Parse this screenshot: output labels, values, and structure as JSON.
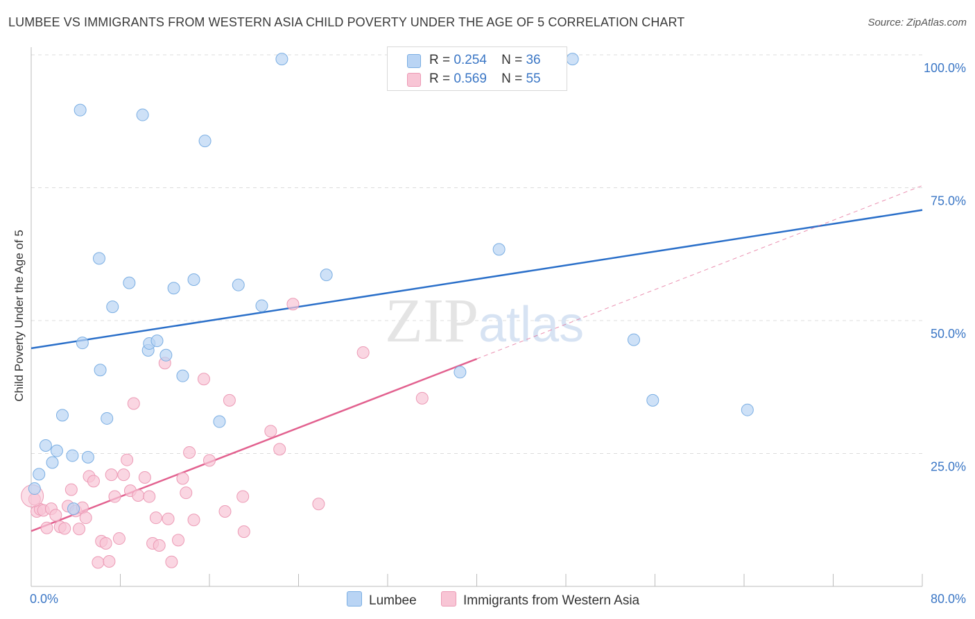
{
  "title": "LUMBEE VS IMMIGRANTS FROM WESTERN ASIA CHILD POVERTY UNDER THE AGE OF 5 CORRELATION CHART",
  "source": "Source: ZipAtlas.com",
  "watermark": "ZIPatlas",
  "colors": {
    "blue_fill": "#b9d4f4",
    "blue_stroke": "#7aaee3",
    "blue_line": "#2a6fc9",
    "pink_fill": "#f8c5d5",
    "pink_stroke": "#ec9ab5",
    "pink_line": "#e2618f",
    "axis_text": "#3a76c5",
    "grid": "#dcdcdc"
  },
  "legend": {
    "r_label": "R =",
    "n_label": "N =",
    "rows": [
      {
        "series": "Lumbee",
        "r": "0.254",
        "n": "36"
      },
      {
        "series": "Immigrants from Western Asia",
        "r": "0.569",
        "n": "55"
      }
    ]
  },
  "chart_data": {
    "type": "scatter",
    "title": "LUMBEE VS IMMIGRANTS FROM WESTERN ASIA CHILD POVERTY UNDER THE AGE OF 5 CORRELATION CHART",
    "xlabel": "",
    "ylabel": "Child Poverty Under the Age of 5",
    "xlim": [
      0,
      80
    ],
    "ylim": [
      0,
      100
    ],
    "x_ticks": [
      "0.0%",
      "80.0%"
    ],
    "y_ticks": [
      "25.0%",
      "50.0%",
      "75.0%",
      "100.0%"
    ],
    "y_tick_values": [
      25,
      50,
      75,
      100
    ],
    "grid": true,
    "legend_position": "top-center",
    "series": [
      {
        "name": "Lumbee",
        "color": "blue",
        "points": [
          [
            0.3,
            18.4
          ],
          [
            0.7,
            21.1
          ],
          [
            1.3,
            26.5
          ],
          [
            1.9,
            23.3
          ],
          [
            2.3,
            25.5
          ],
          [
            2.8,
            32.2
          ],
          [
            3.7,
            24.6
          ],
          [
            3.8,
            14.6
          ],
          [
            5.1,
            24.3
          ],
          [
            4.6,
            45.8
          ],
          [
            4.4,
            89.6
          ],
          [
            6.1,
            61.7
          ],
          [
            6.2,
            40.7
          ],
          [
            6.8,
            31.6
          ],
          [
            7.3,
            52.6
          ],
          [
            8.8,
            57.1
          ],
          [
            10.0,
            88.7
          ],
          [
            10.5,
            44.4
          ],
          [
            10.6,
            45.7
          ],
          [
            11.3,
            46.2
          ],
          [
            12.1,
            43.5
          ],
          [
            12.8,
            56.1
          ],
          [
            13.6,
            39.6
          ],
          [
            14.6,
            57.7
          ],
          [
            15.6,
            83.8
          ],
          [
            16.9,
            31.0
          ],
          [
            18.6,
            56.7
          ],
          [
            20.7,
            52.8
          ],
          [
            22.5,
            99.2
          ],
          [
            26.5,
            58.6
          ],
          [
            38.5,
            40.3
          ],
          [
            42.0,
            63.4
          ],
          [
            48.6,
            99.2
          ],
          [
            54.1,
            46.4
          ],
          [
            55.8,
            35.0
          ],
          [
            64.3,
            33.2
          ]
        ]
      },
      {
        "name": "Immigrants from Western Asia",
        "color": "pink",
        "points": [
          [
            0.3,
            16.4
          ],
          [
            0.5,
            14.1
          ],
          [
            0.8,
            14.5
          ],
          [
            1.1,
            14.3
          ],
          [
            1.4,
            11.0
          ],
          [
            1.8,
            14.6
          ],
          [
            2.2,
            13.4
          ],
          [
            2.6,
            11.2
          ],
          [
            3.0,
            10.9
          ],
          [
            3.3,
            15.1
          ],
          [
            3.6,
            18.2
          ],
          [
            4.0,
            14.2
          ],
          [
            4.3,
            10.8
          ],
          [
            4.6,
            14.8
          ],
          [
            4.9,
            12.9
          ],
          [
            5.2,
            20.7
          ],
          [
            5.6,
            19.8
          ],
          [
            6.0,
            4.5
          ],
          [
            6.3,
            8.5
          ],
          [
            6.7,
            8.1
          ],
          [
            7.0,
            4.7
          ],
          [
            7.2,
            21.0
          ],
          [
            7.5,
            16.9
          ],
          [
            7.9,
            9.0
          ],
          [
            8.3,
            21.0
          ],
          [
            8.6,
            23.8
          ],
          [
            8.9,
            18.0
          ],
          [
            9.2,
            34.4
          ],
          [
            9.6,
            17.1
          ],
          [
            10.2,
            20.5
          ],
          [
            10.6,
            16.9
          ],
          [
            10.9,
            8.1
          ],
          [
            11.2,
            12.9
          ],
          [
            11.5,
            7.7
          ],
          [
            12.0,
            42.0
          ],
          [
            12.3,
            12.7
          ],
          [
            12.6,
            4.6
          ],
          [
            13.2,
            8.7
          ],
          [
            13.6,
            20.3
          ],
          [
            13.9,
            17.6
          ],
          [
            14.2,
            25.2
          ],
          [
            14.6,
            12.5
          ],
          [
            15.5,
            39.0
          ],
          [
            16.0,
            23.7
          ],
          [
            17.4,
            14.1
          ],
          [
            17.8,
            35.0
          ],
          [
            19.0,
            16.9
          ],
          [
            19.1,
            10.3
          ],
          [
            21.5,
            29.2
          ],
          [
            22.3,
            25.8
          ],
          [
            23.5,
            53.1
          ],
          [
            25.8,
            15.5
          ],
          [
            29.8,
            44.0
          ],
          [
            35.1,
            35.4
          ],
          [
            0.1,
            17.0
          ]
        ]
      }
    ],
    "trendlines": [
      {
        "series": "Lumbee",
        "from": [
          0,
          44.8
        ],
        "to": [
          80,
          70.8
        ],
        "style": "solid"
      },
      {
        "series": "Immigrants from Western Asia",
        "from": [
          0,
          10.4
        ],
        "to": [
          40,
          42.8
        ],
        "style": "solid"
      },
      {
        "series": "Immigrants from Western Asia",
        "from": [
          40,
          42.8
        ],
        "to": [
          80,
          75.4
        ],
        "style": "dashed"
      }
    ]
  }
}
